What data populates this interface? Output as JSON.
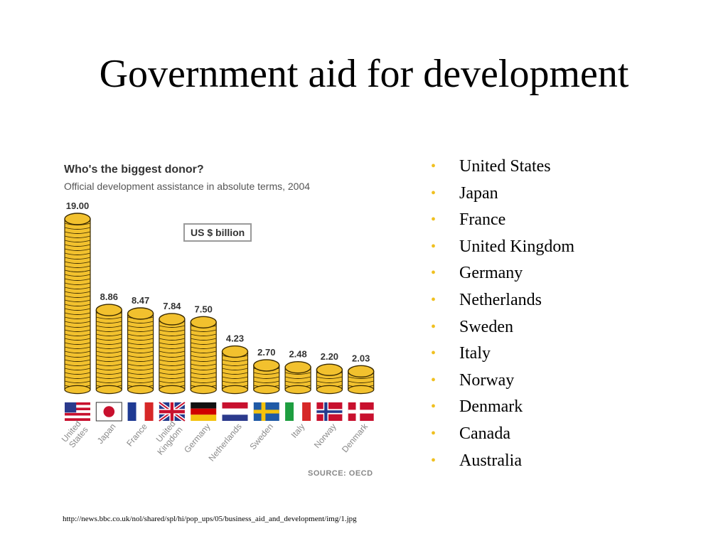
{
  "slide": {
    "title": "Government aid for development",
    "footer_url": "http://news.bbc.co.uk/nol/shared/spl/hi/pop_ups/05/business_aid_and_development/img/1.jpg"
  },
  "bullets": [
    "United States",
    "Japan",
    "France",
    "United Kingdom",
    "Germany",
    "Netherlands",
    "Sweden",
    "Italy",
    "Norway",
    "Denmark",
    "Canada",
    "Australia"
  ],
  "colors": {
    "coin_fill": "#f2c12e",
    "coin_stroke": "#3a2a00",
    "bullet": "#f0c020"
  },
  "chart_data": {
    "type": "bar",
    "title": "Who's the biggest donor?",
    "subtitle": "Official development assistance in absolute terms, 2004",
    "unit_label": "US $ billion",
    "source": "SOURCE: OECD",
    "categories": [
      "United States",
      "Japan",
      "France",
      "United Kingdom",
      "Germany",
      "Netherlands",
      "Sweden",
      "Italy",
      "Norway",
      "Denmark"
    ],
    "values": [
      19.0,
      8.86,
      8.47,
      7.84,
      7.5,
      4.23,
      2.7,
      2.48,
      2.2,
      2.03
    ],
    "value_labels": [
      "19.00",
      "8.86",
      "8.47",
      "7.84",
      "7.50",
      "4.23",
      "2.70",
      "2.48",
      "2.20",
      "2.03"
    ],
    "flags": [
      "flag-us",
      "flag-jp",
      "flag-fr",
      "flag-uk",
      "flag-de",
      "flag-nl",
      "flag-se",
      "flag-it",
      "flag-no",
      "flag-dk"
    ],
    "ylim": [
      0,
      19
    ],
    "grid": false,
    "legend": "none"
  }
}
